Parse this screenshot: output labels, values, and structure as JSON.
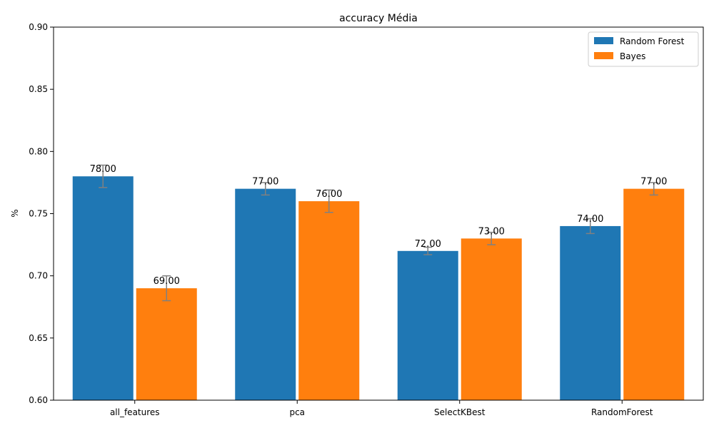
{
  "chart_data": {
    "type": "bar",
    "title": "accuracy Média",
    "xlabel": "",
    "ylabel": "%",
    "ylim": [
      0.6,
      0.9
    ],
    "yticks": [
      "0.60",
      "0.65",
      "0.70",
      "0.75",
      "0.80",
      "0.85",
      "0.90"
    ],
    "categories": [
      "all_features",
      "pca",
      "SelectKBest",
      "RandomForest"
    ],
    "series": [
      {
        "name": "Random Forest",
        "color": "#1f77b4",
        "values": [
          0.78,
          0.77,
          0.72,
          0.74
        ],
        "errors": [
          0.009,
          0.005,
          0.003,
          0.006
        ],
        "labels": [
          "78.00",
          "77.00",
          "72.00",
          "74.00"
        ]
      },
      {
        "name": "Bayes",
        "color": "#ff7f0e",
        "values": [
          0.69,
          0.76,
          0.73,
          0.77
        ],
        "errors": [
          0.01,
          0.009,
          0.005,
          0.005
        ],
        "labels": [
          "69.00",
          "76.00",
          "73.00",
          "77.00"
        ]
      }
    ],
    "error_bar_color": "#808080",
    "legend_position": "top-right",
    "grid": false
  }
}
